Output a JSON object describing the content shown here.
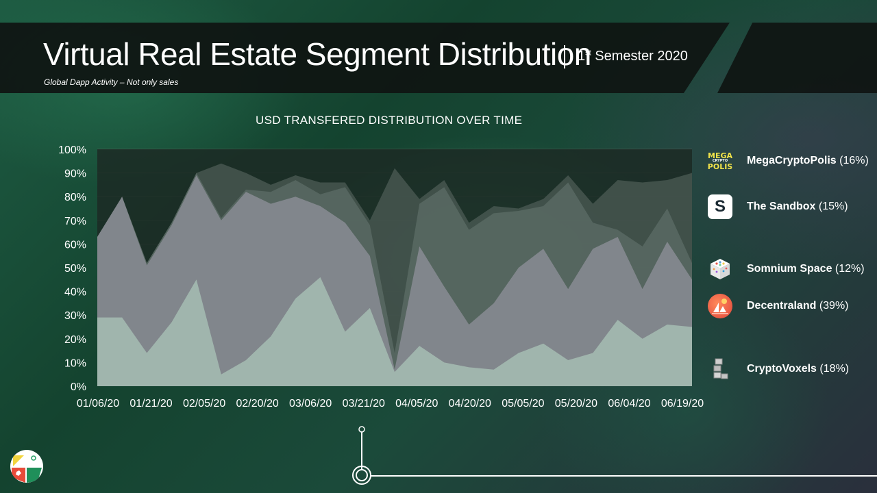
{
  "header": {
    "title": "Virtual Real Estate Segment Distribution",
    "semester_ordinal": "1",
    "semester_sup": "st",
    "semester_rest": " Semester 2020",
    "subtitle": "Global Dapp Activity – Not only sales"
  },
  "chart_data": {
    "type": "area",
    "stacked": true,
    "title": "USD TRANSFERED DISTRIBUTION OVER TIME",
    "xlabel": "",
    "ylabel": "",
    "ylim": [
      0,
      100
    ],
    "yticks": [
      "0%",
      "10%",
      "20%",
      "30%",
      "40%",
      "50%",
      "60%",
      "70%",
      "80%",
      "90%",
      "100%"
    ],
    "xtick_labels": [
      "01/06/20",
      "01/21/20",
      "02/05/20",
      "02/20/20",
      "03/06/20",
      "03/21/20",
      "04/05/20",
      "04/20/20",
      "05/05/20",
      "05/20/20",
      "06/04/20",
      "06/19/20"
    ],
    "x": [
      "01/06/20",
      "01/13/20",
      "01/21/20",
      "01/28/20",
      "02/04/20",
      "02/11/20",
      "02/18/20",
      "02/25/20",
      "03/03/20",
      "03/10/20",
      "03/17/20",
      "03/24/20",
      "03/31/20",
      "04/07/20",
      "04/14/20",
      "04/21/20",
      "04/28/20",
      "05/05/20",
      "05/12/20",
      "05/19/20",
      "05/26/20",
      "06/02/20",
      "06/09/20",
      "06/16/20",
      "06/23/20"
    ],
    "cumulative_top": [
      [
        29,
        29,
        14,
        27,
        45,
        5,
        11,
        21,
        37,
        46,
        23,
        33,
        6,
        17,
        10,
        8,
        7,
        14,
        18,
        11,
        14,
        28,
        20,
        26,
        25
      ],
      [
        63,
        80,
        51,
        68,
        89,
        70,
        82,
        77,
        80,
        76,
        69,
        55,
        7,
        59,
        42,
        26,
        35,
        50,
        58,
        41,
        58,
        63,
        41,
        61,
        45
      ],
      [
        63,
        80,
        52,
        69,
        90,
        71,
        83,
        82,
        87,
        81,
        84,
        68,
        14,
        77,
        84,
        66,
        73,
        74,
        76,
        86,
        69,
        66,
        59,
        75,
        52
      ],
      [
        63,
        80,
        52,
        69,
        90,
        94,
        90,
        85,
        89,
        86,
        86,
        70,
        92,
        79,
        87,
        69,
        76,
        75,
        79,
        89,
        77,
        87,
        86,
        87,
        90
      ],
      [
        100,
        100,
        100,
        100,
        100,
        100,
        100,
        100,
        100,
        100,
        100,
        100,
        100,
        100,
        100,
        100,
        100,
        100,
        100,
        100,
        100,
        100,
        100,
        100,
        100
      ]
    ],
    "layer_colors": [
      "#a9c3b6",
      "#8e8f99",
      "#5b6b65",
      "#4a5a53",
      "#1c2a24"
    ]
  },
  "legend": {
    "items": [
      {
        "name": "MegaCryptoPolis",
        "pct": " (16%)"
      },
      {
        "name": "The Sandbox",
        "pct": " (15%)"
      },
      {
        "name": "Somnium Space",
        "pct": " (12%)"
      },
      {
        "name": "Decentraland",
        "pct": " (39%)"
      },
      {
        "name": "CryptoVoxels",
        "pct": " (18%)"
      }
    ],
    "mega_icon_top": "MEGA",
    "mega_icon_mid": "CRYPTO",
    "mega_icon_bot": "POLIS",
    "sandbox_icon": "S"
  }
}
